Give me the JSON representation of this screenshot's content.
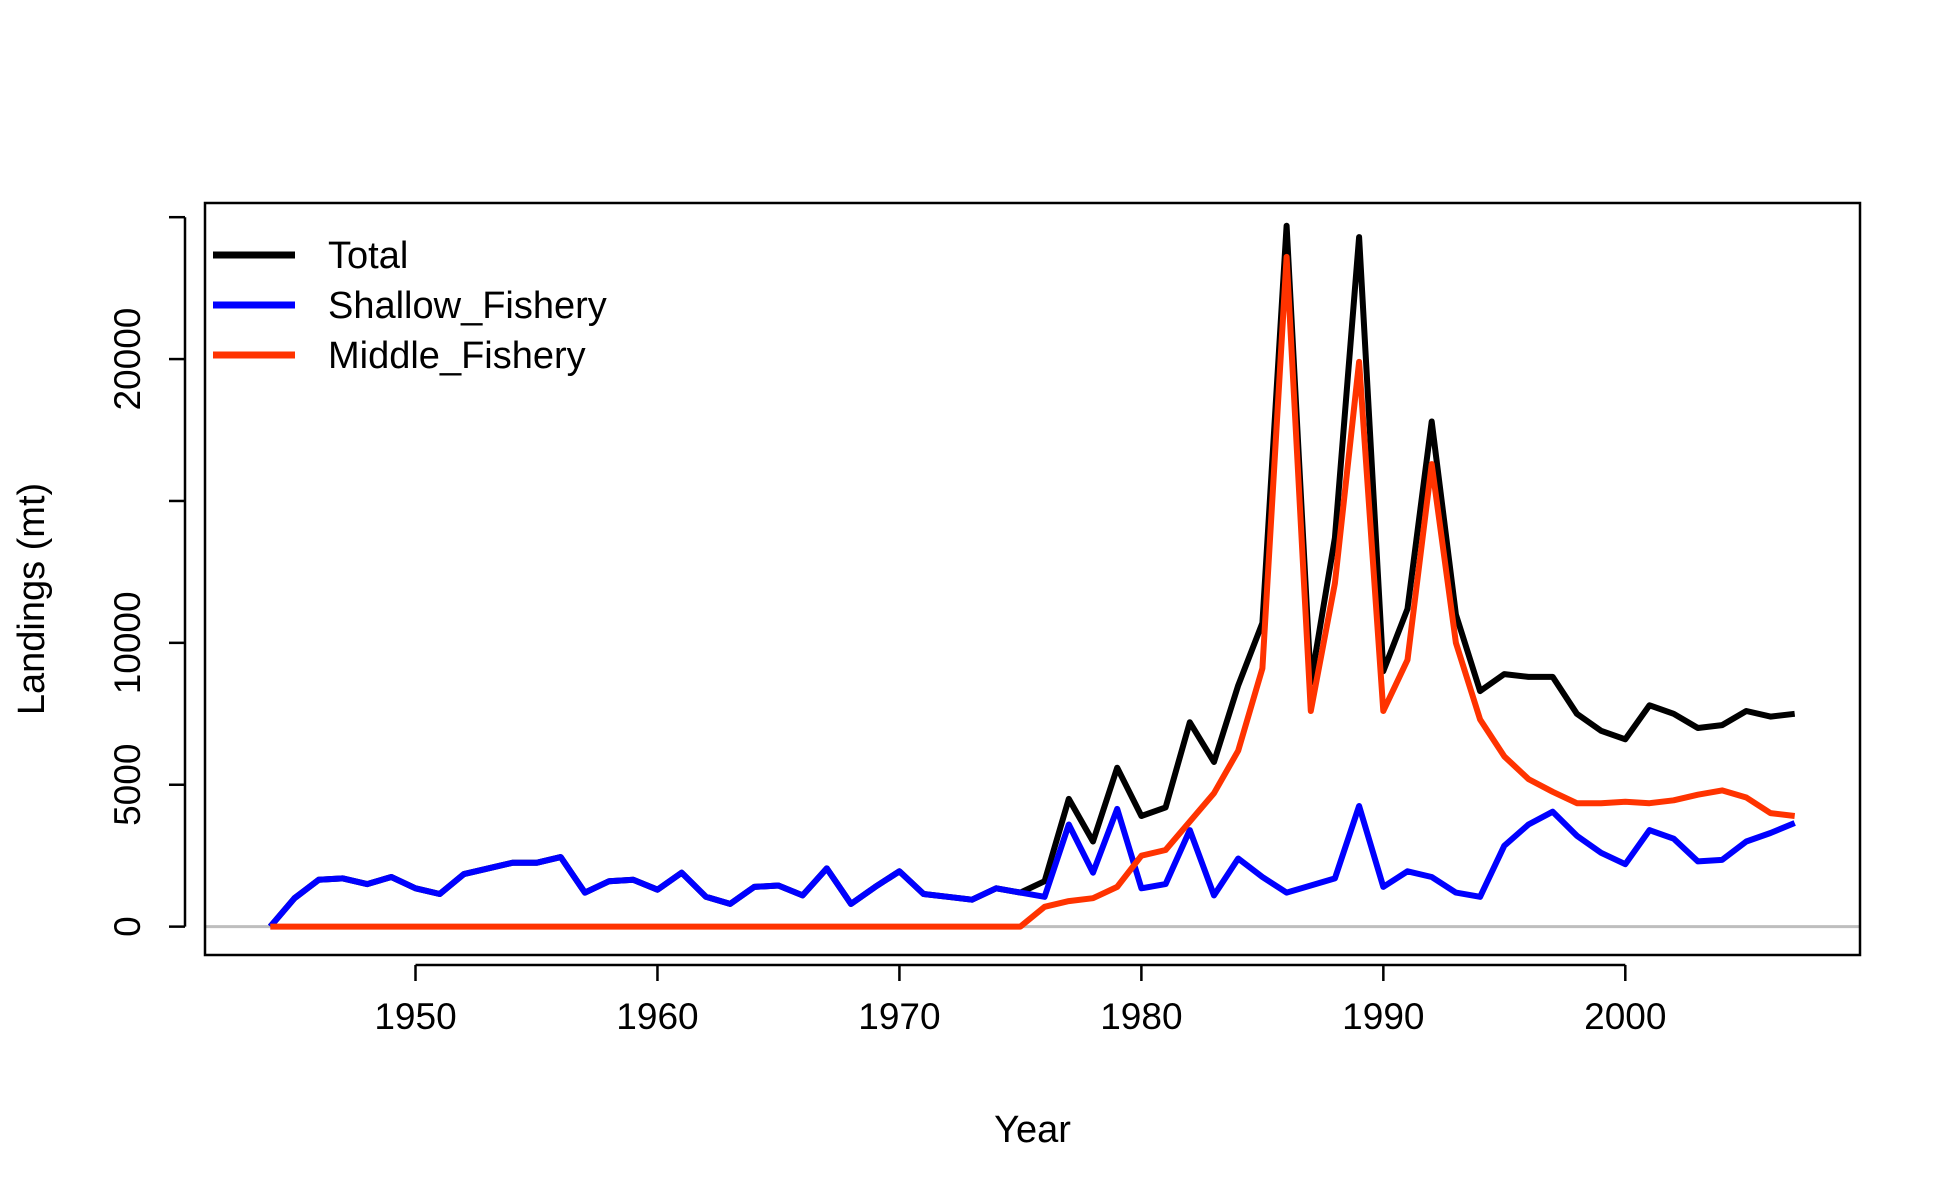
{
  "chart_data": {
    "type": "line",
    "title": "",
    "xlabel": "Year",
    "ylabel": "Landings (mt)",
    "xlim": [
      1941.3,
      2009.7
    ],
    "ylim": [
      -1000,
      25500
    ],
    "xticks": [
      1950,
      1960,
      1970,
      1980,
      1990,
      2000
    ],
    "yticks": [
      0,
      5000,
      10000,
      15000,
      20000,
      25000
    ],
    "ytick_labels": [
      "0",
      "5000",
      "10000",
      "",
      "20000",
      ""
    ],
    "reference_line": {
      "y": 0,
      "color": "#bebebe"
    },
    "legend_position": "top-left",
    "x": [
      1944,
      1945,
      1946,
      1947,
      1948,
      1949,
      1950,
      1951,
      1952,
      1953,
      1954,
      1955,
      1956,
      1957,
      1958,
      1959,
      1960,
      1961,
      1962,
      1963,
      1964,
      1965,
      1966,
      1967,
      1968,
      1969,
      1970,
      1971,
      1972,
      1973,
      1974,
      1975,
      1976,
      1977,
      1978,
      1979,
      1980,
      1981,
      1982,
      1983,
      1984,
      1985,
      1986,
      1987,
      1988,
      1989,
      1990,
      1991,
      1992,
      1993,
      1994,
      1995,
      1996,
      1997,
      1998,
      1999,
      2000,
      2001,
      2002,
      2003,
      2004,
      2005,
      2006,
      2007
    ],
    "series": [
      {
        "name": "Total",
        "color": "#000000",
        "values": [
          0,
          1000,
          1650,
          1700,
          1500,
          1750,
          1350,
          1150,
          1850,
          2050,
          2250,
          2250,
          2450,
          1200,
          1600,
          1650,
          1300,
          1900,
          1050,
          800,
          1400,
          1450,
          1100,
          2050,
          800,
          1400,
          1950,
          1150,
          1050,
          950,
          1350,
          1200,
          1600,
          4500,
          3000,
          5600,
          3900,
          4200,
          7200,
          5800,
          8500,
          10700,
          24700,
          8600,
          13700,
          24300,
          9000,
          11200,
          17800,
          11000,
          8300,
          8900,
          8800,
          8800,
          7500,
          6900,
          6600,
          7800,
          7500,
          7000,
          7100,
          7600,
          7400,
          7500
        ]
      },
      {
        "name": "Shallow_Fishery",
        "color": "#0000ff",
        "values": [
          0,
          1000,
          1650,
          1700,
          1500,
          1750,
          1350,
          1150,
          1850,
          2050,
          2250,
          2250,
          2450,
          1200,
          1600,
          1650,
          1300,
          1900,
          1050,
          800,
          1400,
          1450,
          1100,
          2050,
          800,
          1400,
          1950,
          1150,
          1050,
          950,
          1350,
          1200,
          1050,
          3600,
          1900,
          4150,
          1350,
          1500,
          3400,
          1100,
          2400,
          1750,
          1200,
          1450,
          1700,
          4250,
          1400,
          1950,
          1750,
          1200,
          1050,
          2850,
          3600,
          4050,
          3200,
          2600,
          2200,
          3400,
          3100,
          2300,
          2350,
          3000,
          3300,
          3650
        ]
      },
      {
        "name": "Middle_Fishery",
        "color": "#ff3300",
        "values": [
          0,
          0,
          0,
          0,
          0,
          0,
          0,
          0,
          0,
          0,
          0,
          0,
          0,
          0,
          0,
          0,
          0,
          0,
          0,
          0,
          0,
          0,
          0,
          0,
          0,
          0,
          0,
          0,
          0,
          0,
          0,
          0,
          700,
          900,
          1000,
          1400,
          2500,
          2700,
          3700,
          4700,
          6200,
          9100,
          23600,
          7600,
          12100,
          19900,
          7600,
          9400,
          16300,
          10000,
          7300,
          6000,
          5200,
          4750,
          4350,
          4350,
          4400,
          4350,
          4450,
          4650,
          4800,
          4550,
          4000,
          3900
        ]
      }
    ]
  }
}
